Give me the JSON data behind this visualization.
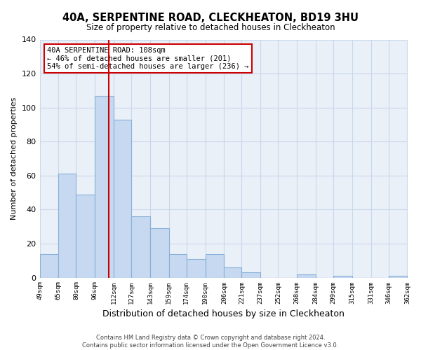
{
  "title": "40A, SERPENTINE ROAD, CLECKHEATON, BD19 3HU",
  "subtitle": "Size of property relative to detached houses in Cleckheaton",
  "xlabel": "Distribution of detached houses by size in Cleckheaton",
  "ylabel": "Number of detached properties",
  "bar_values": [
    14,
    61,
    49,
    107,
    93,
    36,
    29,
    14,
    11,
    14,
    6,
    3,
    0,
    0,
    2,
    0,
    1,
    0,
    0,
    1
  ],
  "bin_edges": [
    49,
    65,
    80,
    96,
    112,
    127,
    143,
    159,
    174,
    190,
    206,
    221,
    237,
    252,
    268,
    284,
    299,
    315,
    331,
    346,
    362
  ],
  "bin_labels": [
    "49sqm",
    "65sqm",
    "80sqm",
    "96sqm",
    "112sqm",
    "127sqm",
    "143sqm",
    "159sqm",
    "174sqm",
    "190sqm",
    "206sqm",
    "221sqm",
    "237sqm",
    "252sqm",
    "268sqm",
    "284sqm",
    "299sqm",
    "315sqm",
    "331sqm",
    "346sqm",
    "362sqm"
  ],
  "bar_color": "#c6d9f0",
  "bar_edge_color": "#8ab0d8",
  "vline_x": 108,
  "vline_color": "#cc0000",
  "ylim": [
    0,
    140
  ],
  "yticks": [
    0,
    20,
    40,
    60,
    80,
    100,
    120,
    140
  ],
  "annotation_title": "40A SERPENTINE ROAD: 108sqm",
  "annotation_line1": "← 46% of detached houses are smaller (201)",
  "annotation_line2": "54% of semi-detached houses are larger (236) →",
  "annotation_box_color": "#ffffff",
  "annotation_box_edge": "#cc0000",
  "footer1": "Contains HM Land Registry data © Crown copyright and database right 2024.",
  "footer2": "Contains public sector information licensed under the Open Government Licence v3.0.",
  "background_color": "#ffffff",
  "plot_bg_color": "#eaf0f8",
  "grid_color": "#c8d8eb"
}
